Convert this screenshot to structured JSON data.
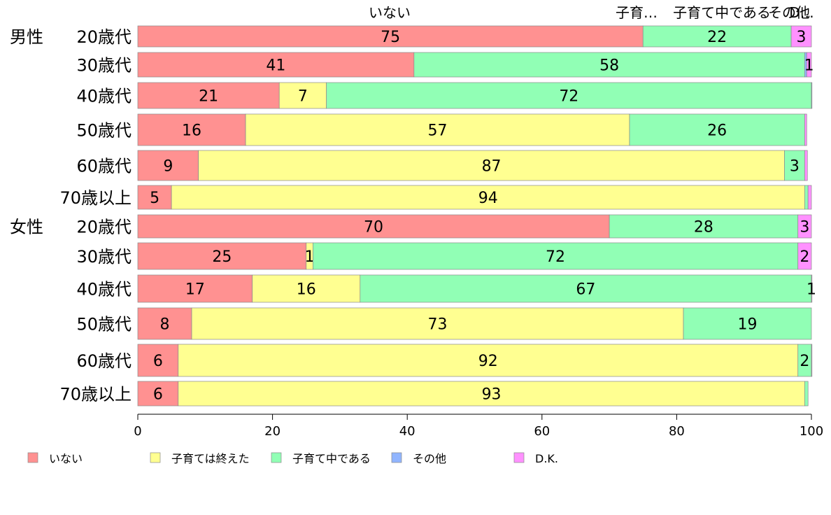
{
  "chart_data": {
    "type": "bar",
    "orientation": "horizontal",
    "stacked": true,
    "xlim": [
      0,
      100
    ],
    "x_ticks": [
      "0",
      "20",
      "40",
      "60",
      "80",
      "100"
    ],
    "top_labels": [
      "いない",
      "子育…",
      "子育て中である",
      "その他",
      "D…"
    ],
    "groups": [
      {
        "name": "男性",
        "start": 0
      },
      {
        "name": "女性",
        "start": 6
      }
    ],
    "categories": [
      "20歳代",
      "30歳代",
      "40歳代",
      "50歳代",
      "60歳代",
      "70歳以上",
      "20歳代",
      "30歳代",
      "40歳代",
      "50歳代",
      "60歳代",
      "70歳以上"
    ],
    "series": [
      {
        "name": "いない",
        "color": "#ff9191",
        "values": [
          75,
          41,
          21,
          16,
          9,
          5,
          70,
          25,
          17,
          8,
          6,
          6
        ],
        "labels": [
          "75",
          "41",
          "21",
          "16",
          "9",
          "5",
          "70",
          "25",
          "17",
          "8",
          "6",
          "6"
        ]
      },
      {
        "name": "子育ては終えた",
        "color": "#ffff91",
        "values": [
          0,
          0,
          7,
          57,
          87,
          94,
          0,
          1,
          16,
          73,
          92,
          93
        ],
        "labels": [
          "",
          "",
          "7",
          "57",
          "87",
          "94",
          "",
          "1",
          "16",
          "73",
          "92",
          "93"
        ]
      },
      {
        "name": "子育て中である",
        "color": "#91ffb5",
        "values": [
          22,
          58,
          72,
          26,
          3,
          0.5,
          28,
          72,
          67,
          19,
          2,
          0.5
        ],
        "labels": [
          "22",
          "58",
          "72",
          "26",
          "3",
          "",
          "28",
          "72",
          "67",
          "19",
          "2",
          ""
        ]
      },
      {
        "name": "その他",
        "color": "#91b5ff",
        "values": [
          0,
          0.3,
          0.4,
          0,
          0,
          0,
          0,
          0,
          0,
          0,
          0,
          0
        ],
        "labels": [
          "",
          "",
          "",
          "",
          "",
          "",
          "",
          "",
          "",
          "",
          "",
          ""
        ]
      },
      {
        "name": "D.K.",
        "color": "#ff91ff",
        "values": [
          3,
          1,
          0,
          0.3,
          0.4,
          0.5,
          3,
          2,
          1,
          0,
          0.4,
          0
        ],
        "labels": [
          "3",
          "1",
          "",
          "",
          "",
          "",
          "3",
          "2",
          "1",
          "",
          "",
          ""
        ]
      }
    ],
    "legend_position": "bottom",
    "grid": false
  }
}
